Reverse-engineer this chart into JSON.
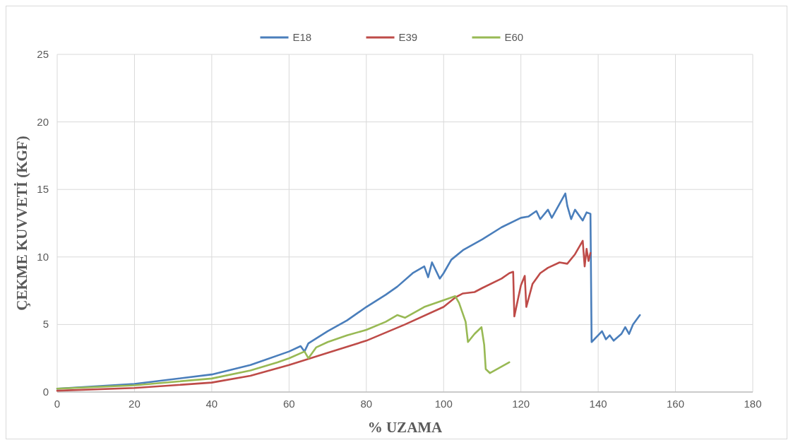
{
  "chart_data": {
    "type": "line",
    "xlabel": "% UZAMA",
    "ylabel": "ÇEKME KUVVETİ (KGF)",
    "xlim": [
      0,
      180
    ],
    "ylim": [
      0,
      25
    ],
    "xticks": [
      0,
      20,
      40,
      60,
      80,
      100,
      120,
      140,
      160,
      180
    ],
    "yticks": [
      0,
      5,
      10,
      15,
      20,
      25
    ],
    "grid": true,
    "legend": "top",
    "marker": "none",
    "line_style": "solid",
    "series": [
      {
        "name": "E18",
        "color": "#4a7ebb",
        "x": [
          0,
          20,
          40,
          50,
          60,
          63,
          64,
          65,
          70,
          75,
          80,
          85,
          88,
          92,
          95,
          96,
          97,
          99,
          100,
          102,
          105,
          110,
          115,
          120,
          122,
          124,
          125,
          127,
          128,
          131.5,
          132,
          133,
          134,
          136,
          137,
          138,
          138.3,
          140,
          141,
          142,
          143,
          144,
          146,
          147,
          148,
          149,
          150.8
        ],
        "values": [
          0.25,
          0.6,
          1.3,
          2.0,
          3.0,
          3.4,
          3.0,
          3.6,
          4.5,
          5.3,
          6.3,
          7.2,
          7.8,
          8.8,
          9.3,
          8.5,
          9.6,
          8.4,
          8.8,
          9.8,
          10.5,
          11.3,
          12.2,
          12.9,
          13.0,
          13.4,
          12.8,
          13.5,
          12.9,
          14.7,
          13.8,
          12.8,
          13.5,
          12.7,
          13.3,
          13.2,
          3.7,
          4.2,
          4.5,
          3.9,
          4.2,
          3.8,
          4.3,
          4.8,
          4.3,
          5.0,
          5.7
        ]
      },
      {
        "name": "E39",
        "color": "#be4b48",
        "x": [
          0,
          20,
          40,
          50,
          60,
          70,
          80,
          90,
          100,
          103,
          105,
          108,
          110,
          115,
          117,
          118,
          118.3,
          120,
          121,
          121.4,
          123,
          125,
          127,
          130,
          132,
          134,
          136,
          136.5,
          137,
          137.5,
          138
        ],
        "values": [
          0.1,
          0.3,
          0.7,
          1.2,
          2.0,
          2.9,
          3.8,
          5.0,
          6.3,
          7.0,
          7.3,
          7.4,
          7.7,
          8.4,
          8.8,
          8.9,
          5.6,
          7.9,
          8.6,
          6.3,
          8.0,
          8.8,
          9.2,
          9.6,
          9.5,
          10.2,
          11.2,
          9.3,
          10.6,
          9.7,
          10.3
        ]
      },
      {
        "name": "E60",
        "color": "#98b954",
        "x": [
          0,
          20,
          40,
          50,
          57,
          60,
          64,
          65,
          67,
          70,
          75,
          80,
          85,
          88,
          90,
          95,
          100,
          103,
          104,
          105.7,
          106.3,
          108,
          109.8,
          110.5,
          110.9,
          112,
          117
        ],
        "values": [
          0.25,
          0.5,
          1.0,
          1.6,
          2.2,
          2.5,
          3.0,
          2.5,
          3.3,
          3.7,
          4.2,
          4.6,
          5.2,
          5.7,
          5.5,
          6.3,
          6.8,
          7.1,
          6.6,
          5.2,
          3.7,
          4.3,
          4.8,
          3.5,
          1.7,
          1.4,
          2.2
        ]
      }
    ]
  }
}
